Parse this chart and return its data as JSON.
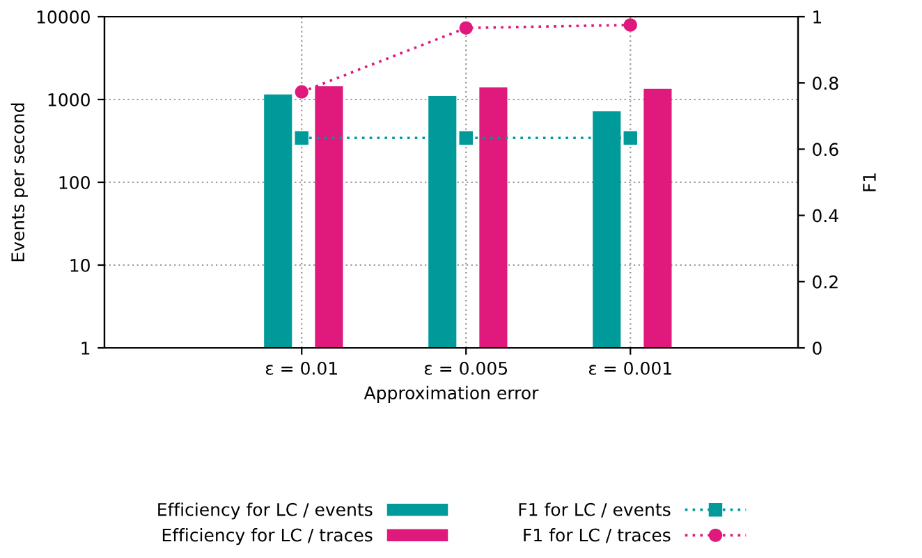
{
  "chart_data": {
    "type": "bar",
    "xlabel": "Approximation error",
    "ylabel": "Events per second",
    "y2label": "F1",
    "categories": [
      "ε = 0.01",
      "ε = 0.005",
      "ε = 0.001"
    ],
    "series": [
      {
        "name": "Efficiency for LC / events",
        "color": "#009a9a",
        "values": [
          1150,
          1100,
          720
        ]
      },
      {
        "name": "Efficiency for LC / traces",
        "color": "#e0197d",
        "values": [
          1440,
          1400,
          1340
        ]
      },
      {
        "name": "F1 for LC / events",
        "type": "line",
        "axis": "y2",
        "color": "#009a9a",
        "marker": "square",
        "line_style": "dotted",
        "values": [
          0.634,
          0.634,
          0.634
        ]
      },
      {
        "name": "F1 for LC / traces",
        "type": "line",
        "axis": "y2",
        "color": "#e0197d",
        "marker": "circle",
        "line_style": "dotted",
        "values": [
          0.773,
          0.966,
          0.975
        ]
      }
    ],
    "log": "y",
    "ylim": [
      1,
      10000
    ],
    "yticks": [
      1,
      10,
      100,
      1000,
      10000
    ],
    "y2lim": [
      0,
      1
    ],
    "y2ticks": [
      0,
      0.2,
      0.4,
      0.6,
      0.8,
      1
    ],
    "grid": true,
    "legend": "bottom"
  }
}
